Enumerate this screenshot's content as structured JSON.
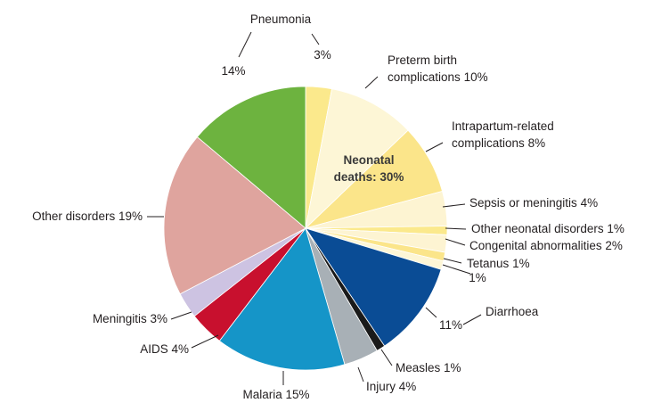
{
  "chart_data": {
    "type": "pie",
    "categories": [
      null,
      "Preterm birth complications",
      "Intrapartum-related complications",
      "Sepsis or meningitis",
      "Other neonatal disorders",
      "Congenital abnormalities",
      "Tetanus",
      null,
      "Diarrhoea",
      "Measles",
      "Injury",
      "Malaria",
      "AIDS",
      "Meningitis",
      "Other disorders",
      "Pneumonia"
    ],
    "values": [
      3,
      10,
      8,
      4,
      1,
      2,
      1,
      1,
      11,
      1,
      4,
      15,
      4,
      3,
      19,
      14
    ],
    "value_labels": [
      "3%",
      "10%",
      "8%",
      "4%",
      "1%",
      "2%",
      "1%",
      "1%",
      "11%",
      "1%",
      "4%",
      "15%",
      "4%",
      "3%",
      "19%",
      "14%"
    ],
    "colors": [
      "#fbe98c",
      "#fdf6d6",
      "#fbe58a",
      "#fdf4d2",
      "#fbe98c",
      "#fdf4d2",
      "#fbe58a",
      "#fdf6d6",
      "#0a4c95",
      "#1a1a1a",
      "#a8b0b6",
      "#1595c8",
      "#c8102e",
      "#cdc3e2",
      "#dfa49e",
      "#6db33f"
    ],
    "annotation": "Neonatal deaths: 30%"
  }
}
